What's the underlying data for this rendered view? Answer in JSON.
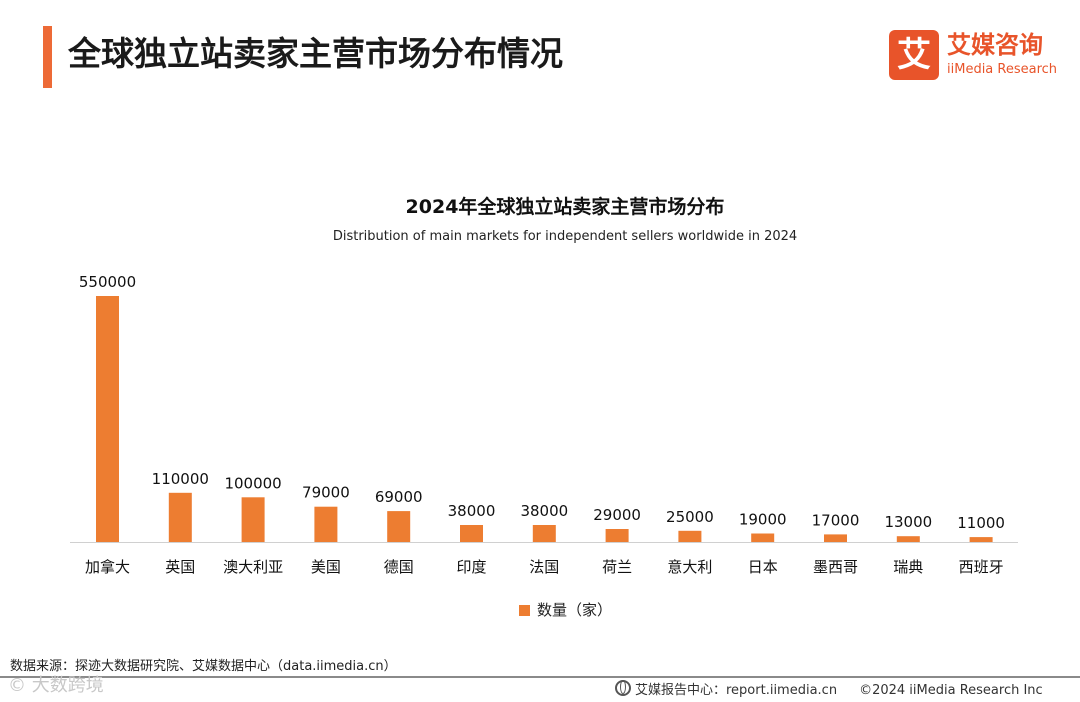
{
  "header": {
    "title": "全球独立站卖家主营市场分布情况"
  },
  "logo": {
    "mark": "艾",
    "cn": "艾媒咨询",
    "en": "iiMedia Research"
  },
  "colors": {
    "accent": "#ED6A36",
    "bar": "#ED7D31"
  },
  "chart_data": {
    "type": "bar",
    "title": "2024年全球独立站卖家主营市场分布",
    "subtitle": "Distribution of main markets for independent sellers worldwide in 2024",
    "categories": [
      "加拿大",
      "英国",
      "澳大利亚",
      "美国",
      "德国",
      "印度",
      "法国",
      "荷兰",
      "意大利",
      "日本",
      "墨西哥",
      "瑞典",
      "西班牙"
    ],
    "series": [
      {
        "name": "数量（家）",
        "values": [
          550000,
          110000,
          100000,
          79000,
          69000,
          38000,
          38000,
          29000,
          25000,
          19000,
          17000,
          13000,
          11000
        ]
      }
    ],
    "ylim": [
      0,
      550000
    ],
    "grid": false,
    "legend": "bottom-center",
    "data_labels": true
  },
  "footer": {
    "source": "数据来源：探迹大数据研究院、艾媒数据中心（data.iimedia.cn）",
    "watermark": "© 大数跨境",
    "report_center": "艾媒报告中心：report.iimedia.cn",
    "copyright": "©2024  iiMedia Research  Inc"
  }
}
